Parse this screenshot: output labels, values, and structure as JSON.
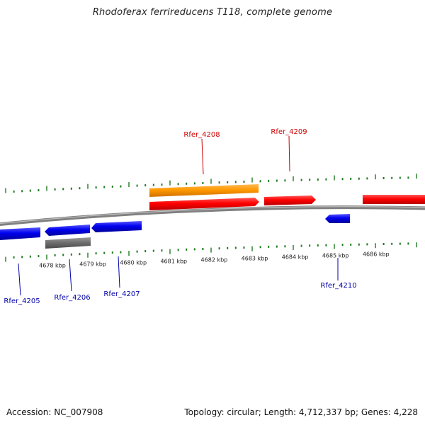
{
  "title": "Rhodoferax ferrireducens T118, complete genome",
  "footer": {
    "accession": "Accession: NC_007908",
    "summary": "Topology: circular; Length: 4,712,337 bp; Genes: 4,228"
  },
  "colors": {
    "tick": "#1f7a1f",
    "backbone": "#808080",
    "forward_label": "#cc0000",
    "reverse_label": "#0000aa",
    "cds_forward": "#ff0000",
    "cds_reverse": "#0000ee",
    "gene_orange": "#ff9900",
    "gene_gray": "#707070"
  },
  "scale": {
    "labels": [
      "4678 kbp",
      "4679 kbp",
      "4680 kbp",
      "4681 kbp",
      "4682 kbp",
      "4683 kbp",
      "4684 kbp",
      "4685 kbp",
      "4686 kbp"
    ]
  },
  "genes": [
    {
      "label": "Rfer_4205",
      "strand": "reverse"
    },
    {
      "label": "Rfer_4206",
      "strand": "reverse"
    },
    {
      "label": "Rfer_4207",
      "strand": "reverse"
    },
    {
      "label": "Rfer_4208",
      "strand": "forward"
    },
    {
      "label": "Rfer_4209",
      "strand": "forward"
    },
    {
      "label": "Rfer_4210",
      "strand": "reverse"
    }
  ]
}
